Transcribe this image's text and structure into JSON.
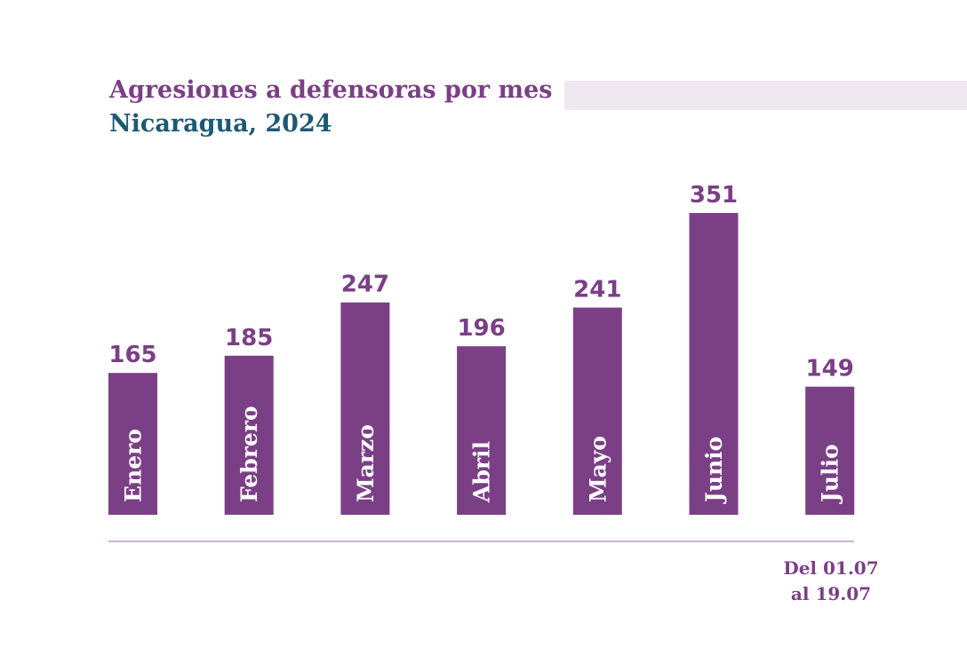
{
  "header": {
    "title": "Agresiones a defensoras por mes",
    "subtitle": "Nicaragua, 2024"
  },
  "colors": {
    "bar": "#7b3f86",
    "title": "#7b3f86",
    "subtitle": "#1b5a75",
    "axis": "#c9b6cf",
    "band": "#efe8f1"
  },
  "chart_data": {
    "type": "bar",
    "title": "Agresiones a defensoras por mes",
    "subtitle": "Nicaragua, 2024",
    "categories": [
      "Enero",
      "Febrero",
      "Marzo",
      "Abril",
      "Mayo",
      "Junio",
      "Julio"
    ],
    "values": [
      165,
      185,
      247,
      196,
      241,
      351,
      149
    ],
    "xlabel": "",
    "ylabel": "",
    "ylim": [
      0,
      351
    ],
    "grid": false,
    "legend": "none",
    "category_label_placement": "inside-bar-vertical",
    "value_label_placement": "above-bar"
  },
  "note": {
    "line1": "Del 01.07",
    "line2": "al 19.07"
  }
}
